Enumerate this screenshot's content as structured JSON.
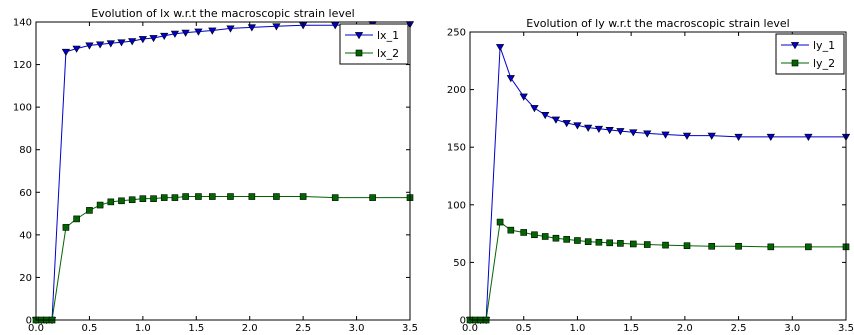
{
  "chart_data": [
    {
      "type": "line",
      "title": "Evolution of lx w.r.t the macroscopic strain level",
      "xlabel": "",
      "ylabel": "",
      "xlim": [
        0.0,
        3.5
      ],
      "ylim": [
        0,
        140
      ],
      "xticks": [
        0.0,
        0.5,
        1.0,
        1.5,
        2.0,
        2.5,
        3.0,
        3.5
      ],
      "xtick_labels": [
        "0.0",
        "0.5",
        "1.0",
        "1.5",
        "2.0",
        "2.5",
        "3.0",
        "3.5"
      ],
      "yticks": [
        0,
        20,
        40,
        60,
        80,
        100,
        120,
        140
      ],
      "ytick_labels": [
        "0",
        "20",
        "40",
        "60",
        "80",
        "100",
        "120",
        "140"
      ],
      "grid": false,
      "legend_position": "top-right",
      "series": [
        {
          "name": "lx_1",
          "color": "#0000cc",
          "marker": "triangle-down",
          "x": [
            0.0,
            0.05,
            0.1,
            0.15,
            0.28,
            0.38,
            0.5,
            0.6,
            0.7,
            0.8,
            0.9,
            1.0,
            1.1,
            1.2,
            1.3,
            1.4,
            1.52,
            1.65,
            1.82,
            2.02,
            2.25,
            2.5,
            2.8,
            3.15,
            3.5
          ],
          "values": [
            0,
            0,
            0,
            0,
            126,
            127.5,
            129,
            129.5,
            130,
            130.5,
            131,
            132,
            132.5,
            133.5,
            134.5,
            135,
            135.5,
            136,
            137,
            137.5,
            138,
            138.5,
            138.5,
            139,
            139
          ]
        },
        {
          "name": "lx_2",
          "color": "#006600",
          "marker": "square",
          "x": [
            0.0,
            0.05,
            0.1,
            0.15,
            0.28,
            0.38,
            0.5,
            0.6,
            0.7,
            0.8,
            0.9,
            1.0,
            1.1,
            1.2,
            1.3,
            1.4,
            1.52,
            1.65,
            1.82,
            2.02,
            2.25,
            2.5,
            2.8,
            3.15,
            3.5
          ],
          "values": [
            0,
            0,
            0,
            0,
            43.5,
            47.5,
            51.5,
            54,
            55.5,
            56,
            56.5,
            57,
            57,
            57.5,
            57.5,
            58,
            58,
            58,
            58,
            58,
            58,
            58,
            57.5,
            57.5,
            57.5
          ]
        }
      ]
    },
    {
      "type": "line",
      "title": "Evolution of ly w.r.t the macroscopic strain level",
      "xlabel": "",
      "ylabel": "",
      "xlim": [
        0.0,
        3.5
      ],
      "ylim": [
        0,
        250
      ],
      "xticks": [
        0.0,
        0.5,
        1.0,
        1.5,
        2.0,
        2.5,
        3.0,
        3.5
      ],
      "xtick_labels": [
        "0.0",
        "0.5",
        "1.0",
        "1.5",
        "2.0",
        "2.5",
        "3.0",
        "3.5"
      ],
      "yticks": [
        0,
        50,
        100,
        150,
        200,
        250
      ],
      "ytick_labels": [
        "0",
        "50",
        "100",
        "150",
        "200",
        "250"
      ],
      "grid": false,
      "legend_position": "top-right",
      "series": [
        {
          "name": "ly_1",
          "color": "#0000cc",
          "marker": "triangle-down",
          "x": [
            0.0,
            0.05,
            0.1,
            0.15,
            0.28,
            0.38,
            0.5,
            0.6,
            0.7,
            0.8,
            0.9,
            1.0,
            1.1,
            1.2,
            1.3,
            1.4,
            1.52,
            1.65,
            1.82,
            2.02,
            2.25,
            2.5,
            2.8,
            3.15,
            3.5
          ],
          "values": [
            0,
            0,
            0,
            0,
            237,
            210,
            194,
            184,
            178,
            174,
            171,
            169,
            167,
            166,
            165,
            164,
            163,
            162,
            161,
            160,
            160,
            159,
            159,
            159,
            159
          ]
        },
        {
          "name": "ly_2",
          "color": "#006600",
          "marker": "square",
          "x": [
            0.0,
            0.05,
            0.1,
            0.15,
            0.28,
            0.38,
            0.5,
            0.6,
            0.7,
            0.8,
            0.9,
            1.0,
            1.1,
            1.2,
            1.3,
            1.4,
            1.52,
            1.65,
            1.82,
            2.02,
            2.25,
            2.5,
            2.8,
            3.15,
            3.5
          ],
          "values": [
            0,
            0,
            0,
            0,
            85,
            78,
            76,
            74,
            72.5,
            71,
            70,
            69,
            68,
            67.5,
            67,
            66.5,
            66,
            65.5,
            65,
            64.5,
            64,
            64,
            63.5,
            63.5,
            63.5
          ]
        }
      ]
    }
  ]
}
